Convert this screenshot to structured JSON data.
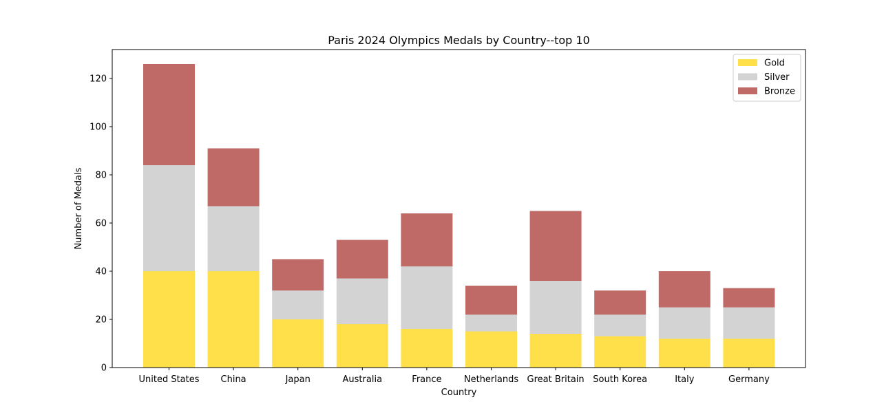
{
  "chart_data": {
    "type": "bar",
    "stacked": true,
    "title": "Paris 2024 Olympics Medals by Country--top 10",
    "xlabel": "Country",
    "ylabel": "Number of Medals",
    "ylim": [
      0,
      132
    ],
    "yticks": [
      0,
      20,
      40,
      60,
      80,
      100,
      120
    ],
    "grid": false,
    "legend_position": "top-right",
    "categories": [
      "United States",
      "China",
      "Japan",
      "Australia",
      "France",
      "Netherlands",
      "Great Britain",
      "South Korea",
      "Italy",
      "Germany"
    ],
    "series": [
      {
        "name": "Gold",
        "color": "#ffe04b",
        "values": [
          40,
          40,
          20,
          18,
          16,
          15,
          14,
          13,
          12,
          12
        ]
      },
      {
        "name": "Silver",
        "color": "#d3d3d3",
        "values": [
          44,
          27,
          12,
          19,
          26,
          7,
          22,
          9,
          13,
          13
        ]
      },
      {
        "name": "Bronze",
        "color": "#c06a67",
        "values": [
          42,
          24,
          13,
          16,
          22,
          12,
          29,
          10,
          15,
          8
        ]
      }
    ]
  }
}
